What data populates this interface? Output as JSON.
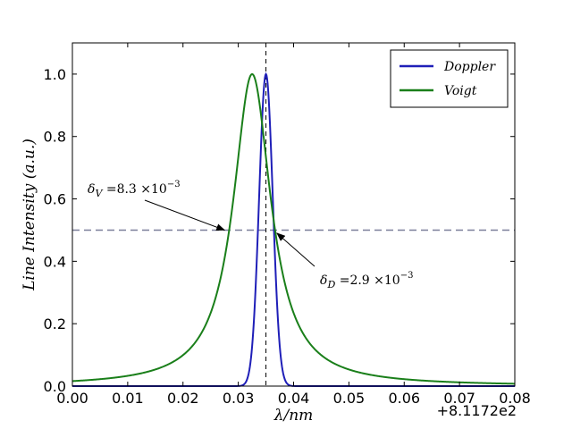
{
  "chart_data": {
    "type": "line",
    "title": "",
    "xlabel": "λ/nm",
    "ylabel": "Line Intensity (a.u.)",
    "x_offset_label": "+8.1172e2",
    "xlim": [
      0.0,
      0.08
    ],
    "ylim": [
      0.0,
      1.1
    ],
    "x_ticks": [
      "0.00",
      "0.01",
      "0.02",
      "0.03",
      "0.04",
      "0.05",
      "0.06",
      "0.07",
      "0.08"
    ],
    "y_ticks": [
      "0.0",
      "0.2",
      "0.4",
      "0.6",
      "0.8",
      "1.0"
    ],
    "legend_position": "top-right",
    "series": [
      {
        "name": "Doppler",
        "color": "#1f1fb8",
        "profile": "gaussian",
        "center": 0.035,
        "fwhm": 0.0029,
        "peak": 1.0
      },
      {
        "name": "Voigt",
        "color": "#1a7f1a",
        "profile": "lorentzian",
        "center": 0.0325,
        "fwhm": 0.0083,
        "peak": 1.0
      }
    ],
    "reference_lines": {
      "horizontal_y": 0.5,
      "vertical_x": 0.035
    },
    "annotations": [
      {
        "symbol": "δ",
        "sub": "V",
        "text": " =8.3 ×10",
        "exp": "−3",
        "target_x": 0.0275,
        "target_y": 0.5
      },
      {
        "symbol": "δ",
        "sub": "D",
        "text": " =2.9 ×10",
        "exp": "−3",
        "target_x": 0.037,
        "target_y": 0.49
      }
    ]
  }
}
